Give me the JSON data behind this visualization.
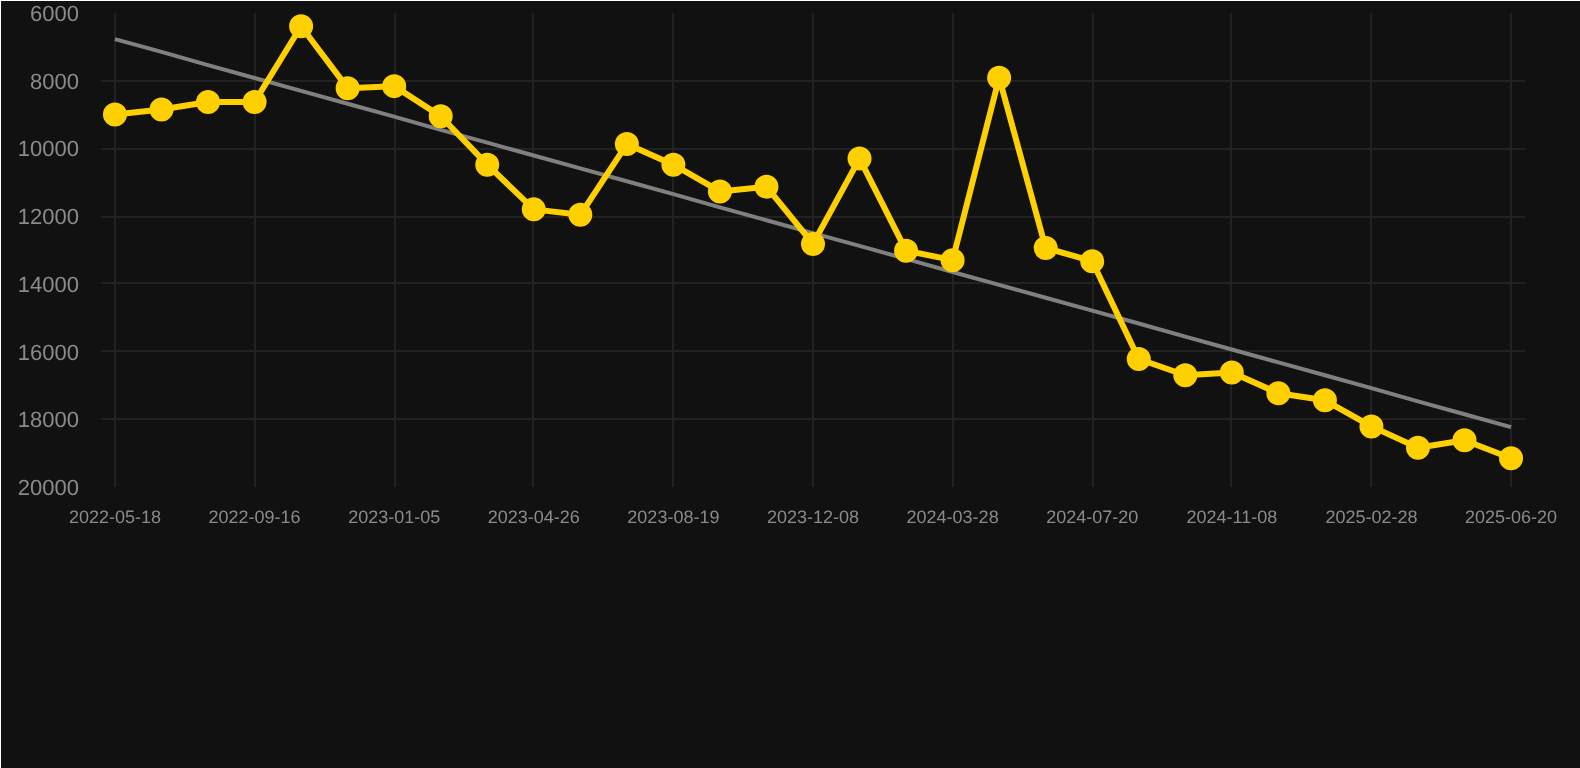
{
  "chart_data": {
    "type": "line",
    "categories": [
      "2022-05-18",
      null,
      null,
      "2022-09-16",
      null,
      null,
      "2023-01-05",
      null,
      null,
      "2023-04-26",
      null,
      null,
      "2023-08-19",
      null,
      null,
      "2023-12-08",
      null,
      null,
      "2024-03-28",
      null,
      null,
      "2024-07-20",
      null,
      null,
      "2024-11-08",
      null,
      null,
      "2025-02-28",
      null,
      null,
      "2025-06-20"
    ],
    "series": [
      {
        "color": "#ffd000",
        "marker": "circle",
        "values": [
          9000,
          8850,
          8630,
          8630,
          6390,
          8220,
          8160,
          9050,
          10480,
          11800,
          11960,
          9870,
          10480,
          11270,
          11130,
          12820,
          10300,
          13020,
          13300,
          7910,
          12940,
          13330,
          16220,
          16700,
          16620,
          17230,
          17440,
          18210,
          18840,
          18620,
          19150
        ]
      },
      {
        "type": "line",
        "color": "#808080",
        "marker": "none",
        "values": [
          6770,
          7150,
          7540,
          7920,
          8300,
          8680,
          9060,
          9450,
          9830,
          10210,
          10590,
          10970,
          11350,
          11740,
          12120,
          12500,
          12880,
          13260,
          13650,
          14030,
          14410,
          14790,
          15170,
          15560,
          15940,
          16320,
          16700,
          17080,
          17470,
          17850,
          18230
        ]
      }
    ],
    "ylim": [
      20000,
      6000
    ],
    "yticks": [
      6000,
      8000,
      10000,
      12000,
      14000,
      16000,
      18000,
      20000
    ],
    "grid": true
  }
}
